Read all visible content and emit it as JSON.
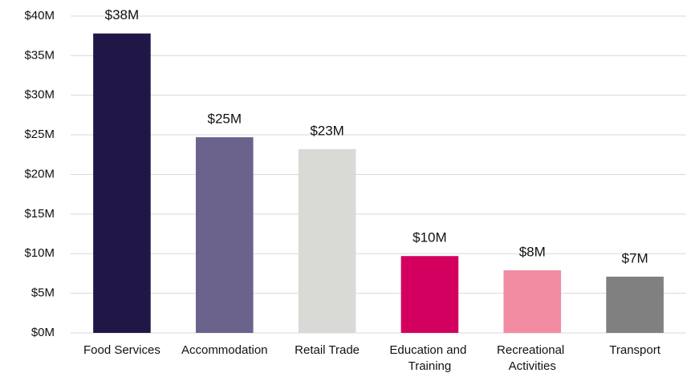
{
  "chart_data": {
    "type": "bar",
    "categories": [
      "Food Services",
      "Accommodation",
      "Retail Trade",
      "Education and Training",
      "Recreational Activities",
      "Transport"
    ],
    "values": [
      37.8,
      24.7,
      23.2,
      9.7,
      7.9,
      7.1
    ],
    "value_labels": [
      "$38M",
      "$25M",
      "$23M",
      "$10M",
      "$8M",
      "$7M"
    ],
    "colors": [
      "#211747",
      "#6b638c",
      "#d9d9d6",
      "#d3005f",
      "#f28ca3",
      "#808080"
    ],
    "ylim": [
      0,
      40
    ],
    "yticks": [
      {
        "value": 0,
        "label": "$0M"
      },
      {
        "value": 5,
        "label": "$5M"
      },
      {
        "value": 10,
        "label": "$10M"
      },
      {
        "value": 15,
        "label": "$15M"
      },
      {
        "value": 20,
        "label": "$20M"
      },
      {
        "value": 25,
        "label": "$25M"
      },
      {
        "value": 30,
        "label": "$30M"
      },
      {
        "value": 35,
        "label": "$35M"
      },
      {
        "value": 40,
        "label": "$40M"
      }
    ],
    "grid": true
  }
}
